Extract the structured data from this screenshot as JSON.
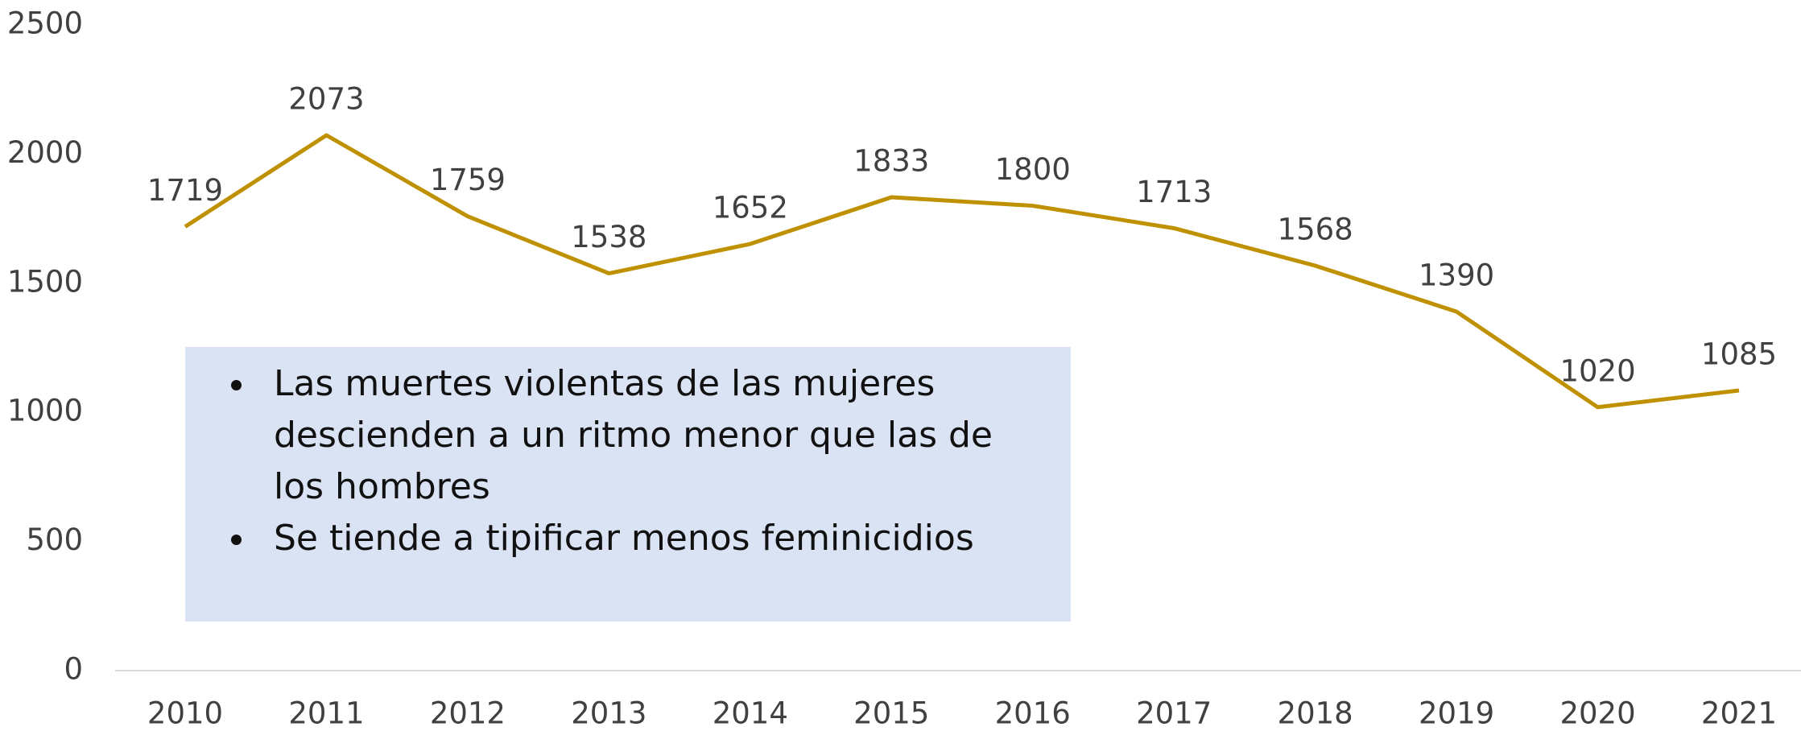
{
  "chart_data": {
    "type": "line",
    "categories": [
      "2010",
      "2011",
      "2012",
      "2013",
      "2014",
      "2015",
      "2016",
      "2017",
      "2018",
      "2019",
      "2020",
      "2021"
    ],
    "series": [
      {
        "color": "#bf9000",
        "values": [
          1719,
          2073,
          1759,
          1538,
          1652,
          1833,
          1800,
          1713,
          1568,
          1390,
          1020,
          1085
        ]
      }
    ],
    "ylim": [
      0,
      2500
    ],
    "yticks": [
      0,
      500,
      1000,
      1500,
      2000,
      2500
    ],
    "grid": false,
    "annotations": [
      "Las muertes violentas de las mujeres descienden a un ritmo menor que las de los hombres",
      "Se tiende a tipificar menos feminicidios"
    ]
  }
}
